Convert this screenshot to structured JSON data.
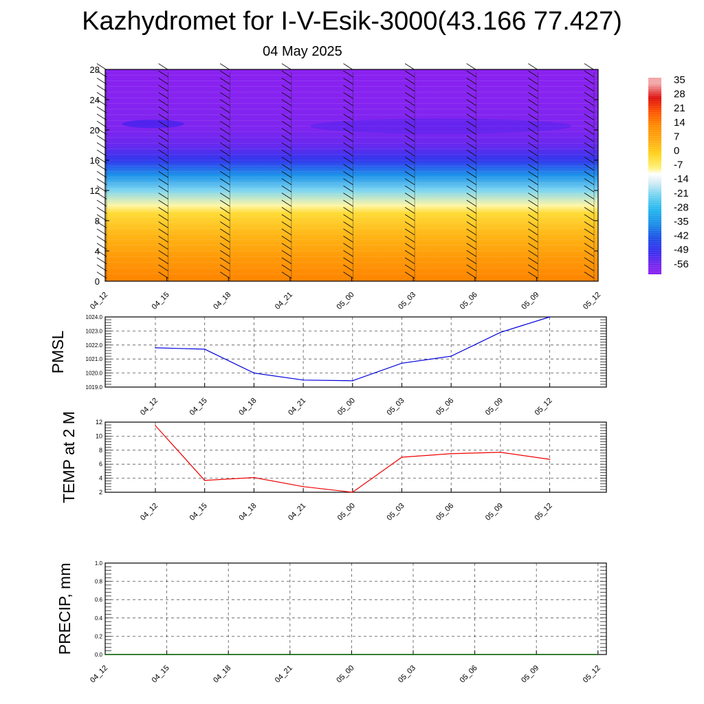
{
  "header": {
    "title": "Kazhydromet for I-V-Esik-3000(43.166 77.427)",
    "date": "04 May 2025"
  },
  "chart_data": [
    {
      "type": "heatmap",
      "panel": "vertical-temperature-cross-section",
      "x_categories": [
        "04_12",
        "04_15",
        "04_18",
        "04_21",
        "05_00",
        "05_03",
        "05_06",
        "05_09",
        "05_12"
      ],
      "y_ticks": [
        0,
        4,
        8,
        12,
        16,
        20,
        24,
        28
      ],
      "ylim": [
        0,
        28
      ],
      "grid": false,
      "wind_barbs": true,
      "colorbar_labels": [
        "35",
        "28",
        "21",
        "14",
        "7",
        "0",
        "-7",
        "-14",
        "-21",
        "-28",
        "-35",
        "-42",
        "-49",
        "-56"
      ],
      "colorbar_range": [
        -60,
        38
      ],
      "color_stops": [
        {
          "value": -60,
          "color": "#8a22f0"
        },
        {
          "value": -56,
          "color": "#7a26ee"
        },
        {
          "value": -49,
          "color": "#3a2ef0"
        },
        {
          "value": -42,
          "color": "#1d4fe8"
        },
        {
          "value": -35,
          "color": "#1c8de8"
        },
        {
          "value": -28,
          "color": "#22b6ee"
        },
        {
          "value": -21,
          "color": "#6fd2f0"
        },
        {
          "value": -14,
          "color": "#d9eef6"
        },
        {
          "value": -10,
          "color": "#ffffff"
        },
        {
          "value": -7,
          "color": "#fff27a"
        },
        {
          "value": 0,
          "color": "#ffd21c"
        },
        {
          "value": 7,
          "color": "#ffaa12"
        },
        {
          "value": 14,
          "color": "#ff8c00"
        },
        {
          "value": 21,
          "color": "#ff5400"
        },
        {
          "value": 28,
          "color": "#e01010"
        },
        {
          "value": 35,
          "color": "#f2a6a6"
        }
      ],
      "profile": [
        {
          "y": 0,
          "value": 15
        },
        {
          "y": 3,
          "value": 11
        },
        {
          "y": 6,
          "value": 5
        },
        {
          "y": 9,
          "value": -2
        },
        {
          "y": 10,
          "value": -8
        },
        {
          "y": 12,
          "value": -20
        },
        {
          "y": 14,
          "value": -34
        },
        {
          "y": 16,
          "value": -47
        },
        {
          "y": 18,
          "value": -54
        },
        {
          "y": 20,
          "value": -57
        },
        {
          "y": 24,
          "value": -59
        },
        {
          "y": 28,
          "value": -60
        }
      ]
    },
    {
      "type": "line",
      "panel": "pmsl",
      "ylabel": "PMSL",
      "categories": [
        "04_12",
        "04_15",
        "04_18",
        "04_21",
        "05_00",
        "05_03",
        "05_06",
        "05_09",
        "05_12"
      ],
      "y_ticks": [
        "1019.0",
        "1020.0",
        "1021.0",
        "1022.0",
        "1023.0",
        "1024.0"
      ],
      "ylim": [
        1019,
        1024
      ],
      "series": [
        {
          "values": [
            1021.8,
            1021.7,
            1020.0,
            1019.5,
            1019.45,
            1020.7,
            1021.2,
            1022.9,
            1024.0
          ],
          "color": "#0000dd"
        }
      ],
      "grid": true
    },
    {
      "type": "line",
      "panel": "temp-2m",
      "ylabel": "TEMP at 2 M",
      "categories": [
        "04_12",
        "04_15",
        "04_18",
        "04_21",
        "05_00",
        "05_03",
        "05_06",
        "05_09",
        "05_12"
      ],
      "y_ticks": [
        "2",
        "4",
        "6",
        "8",
        "10",
        "12"
      ],
      "ylim": [
        2,
        12
      ],
      "series": [
        {
          "values": [
            11.5,
            3.7,
            4.1,
            2.8,
            2.0,
            7.0,
            7.5,
            7.7,
            6.7
          ],
          "color": "#ee0000"
        }
      ],
      "grid": true
    },
    {
      "type": "line",
      "panel": "precip",
      "ylabel": "PRECIP, mm",
      "categories": [
        "04_12",
        "04_15",
        "04_18",
        "04_21",
        "05_00",
        "05_03",
        "05_06",
        "05_09",
        "05_12"
      ],
      "y_ticks": [
        "0.0",
        "0.2",
        "0.4",
        "0.6",
        "0.8",
        "1.0"
      ],
      "ylim": [
        0,
        1
      ],
      "series": [
        {
          "values": [
            0,
            0,
            0,
            0,
            0,
            0,
            0,
            0,
            0
          ],
          "color": "#006400"
        }
      ],
      "grid": true
    }
  ]
}
